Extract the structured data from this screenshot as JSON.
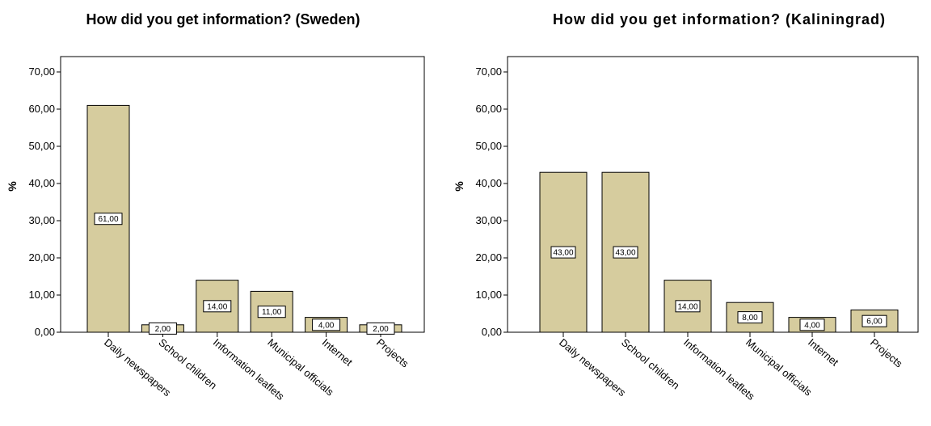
{
  "chart_data": [
    {
      "type": "bar",
      "title": "How did you get information? (Sweden)",
      "xlabel": "",
      "ylabel": "%",
      "ylim": [
        0,
        70
      ],
      "yticks": [
        "0,00",
        "10,00",
        "20,00",
        "30,00",
        "40,00",
        "50,00",
        "60,00",
        "70,00"
      ],
      "categories": [
        "Daily newspapers",
        "School children",
        "Information leaflets",
        "Municipal officials",
        "Internet",
        "Projects"
      ],
      "values": [
        61,
        2,
        14,
        11,
        4,
        2
      ],
      "data_labels": [
        "61,00",
        "2,00",
        "14,00",
        "11,00",
        "4,00",
        "2,00"
      ],
      "bar_color": "#d6cc9e",
      "grid": false,
      "legend": "none"
    },
    {
      "type": "bar",
      "title": "How did you get information? (Kaliningrad)",
      "xlabel": "",
      "ylabel": "%",
      "ylim": [
        0,
        70
      ],
      "yticks": [
        "0,00",
        "10,00",
        "20,00",
        "30,00",
        "40,00",
        "50,00",
        "60,00",
        "70,00"
      ],
      "categories": [
        "Daily newspapers",
        "School children",
        "Information leaflets",
        "Municipal officials",
        "Internet",
        "Projects"
      ],
      "values": [
        43,
        43,
        14,
        8,
        4,
        6
      ],
      "data_labels": [
        "43,00",
        "43,00",
        "14,00",
        "8,00",
        "4,00",
        "6,00"
      ],
      "bar_color": "#d6cc9e",
      "grid": false,
      "legend": "none"
    }
  ]
}
